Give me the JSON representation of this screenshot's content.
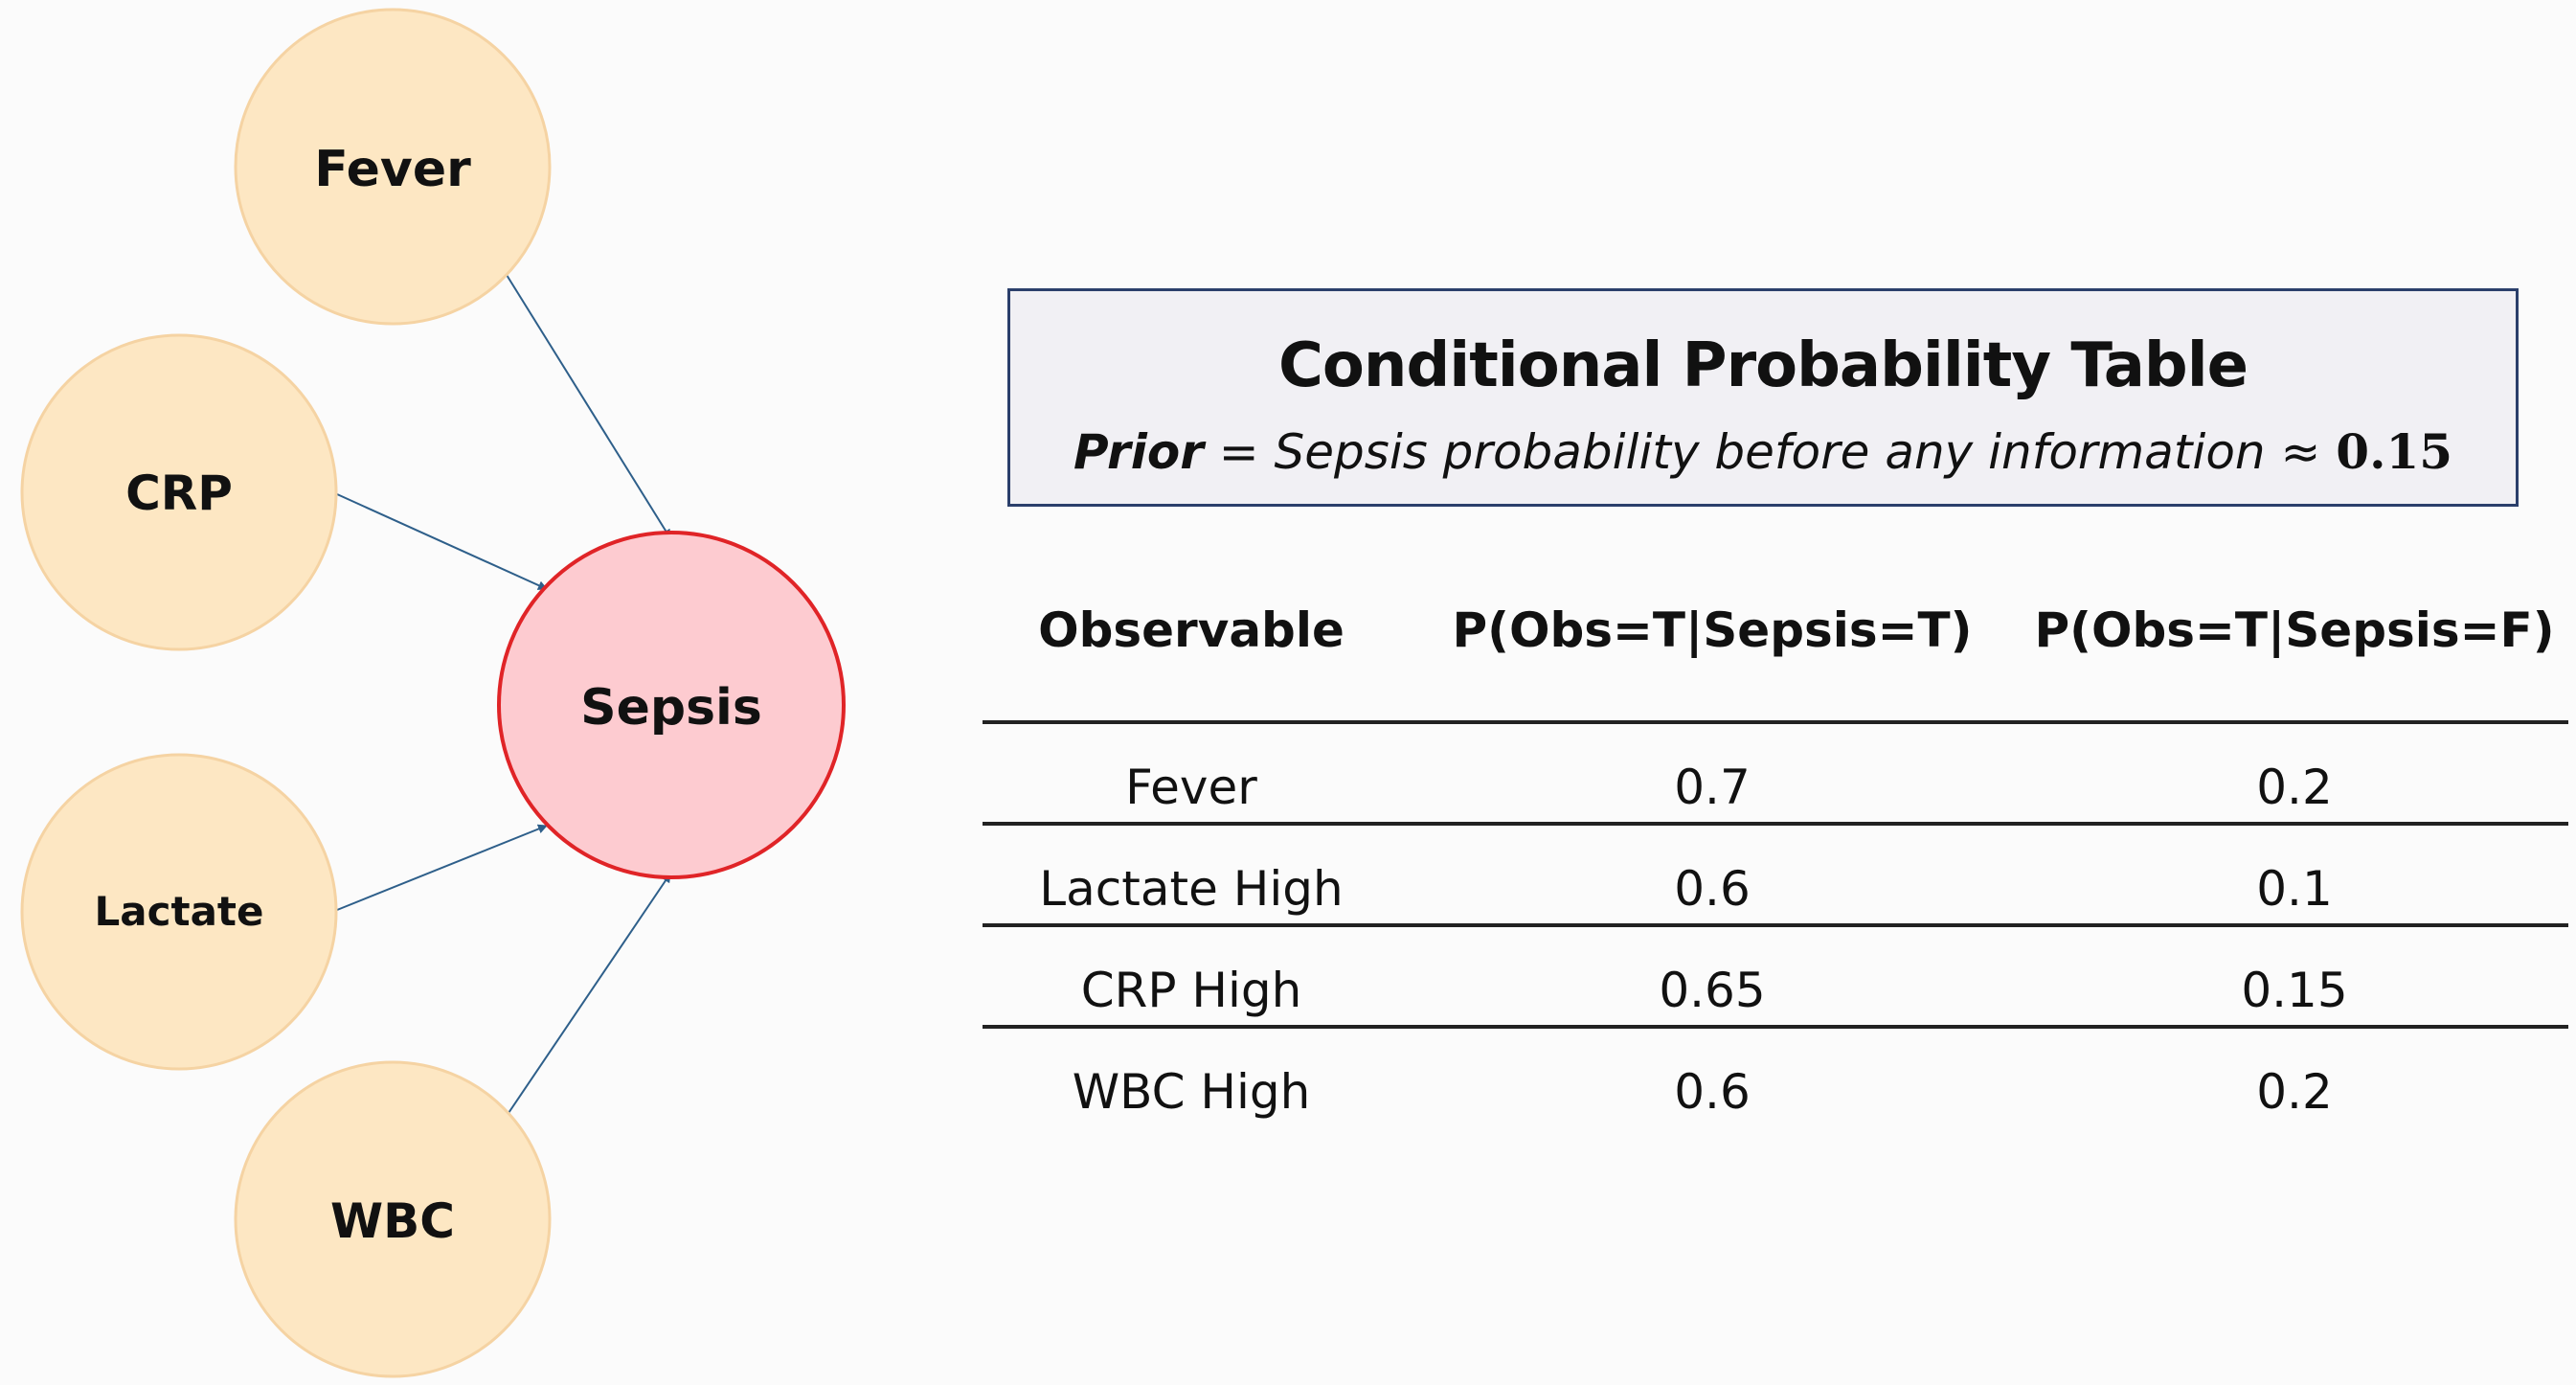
{
  "nodes": {
    "fever": "Fever",
    "crp": "CRP",
    "lactate": "Lactate",
    "wbc": "WBC",
    "sepsis": "Sepsis"
  },
  "colors": {
    "observable_fill": "#fde7c3",
    "observable_stroke": "#f5d3a3",
    "sepsis_fill": "#fdcbd0",
    "sepsis_stroke": "#e02427",
    "edge": "#2e5f8a",
    "title_border": "#2b3f6b",
    "title_background": "#f1f0f4"
  },
  "title_box": {
    "title": "Conditional Probability Table",
    "prior_term": "Prior",
    "prior_text": " = Sepsis probability before any information ≈ ",
    "prior_value": "0.15"
  },
  "table": {
    "headers": [
      "Observable",
      "P(Obs=T|Sepsis=T)",
      "P(Obs=T|Sepsis=F)"
    ],
    "rows": [
      [
        "Fever",
        "0.7",
        "0.2"
      ],
      [
        "Lactate High",
        "0.6",
        "0.1"
      ],
      [
        "CRP High",
        "0.65",
        "0.15"
      ],
      [
        "WBC High",
        "0.6",
        "0.2"
      ]
    ]
  }
}
